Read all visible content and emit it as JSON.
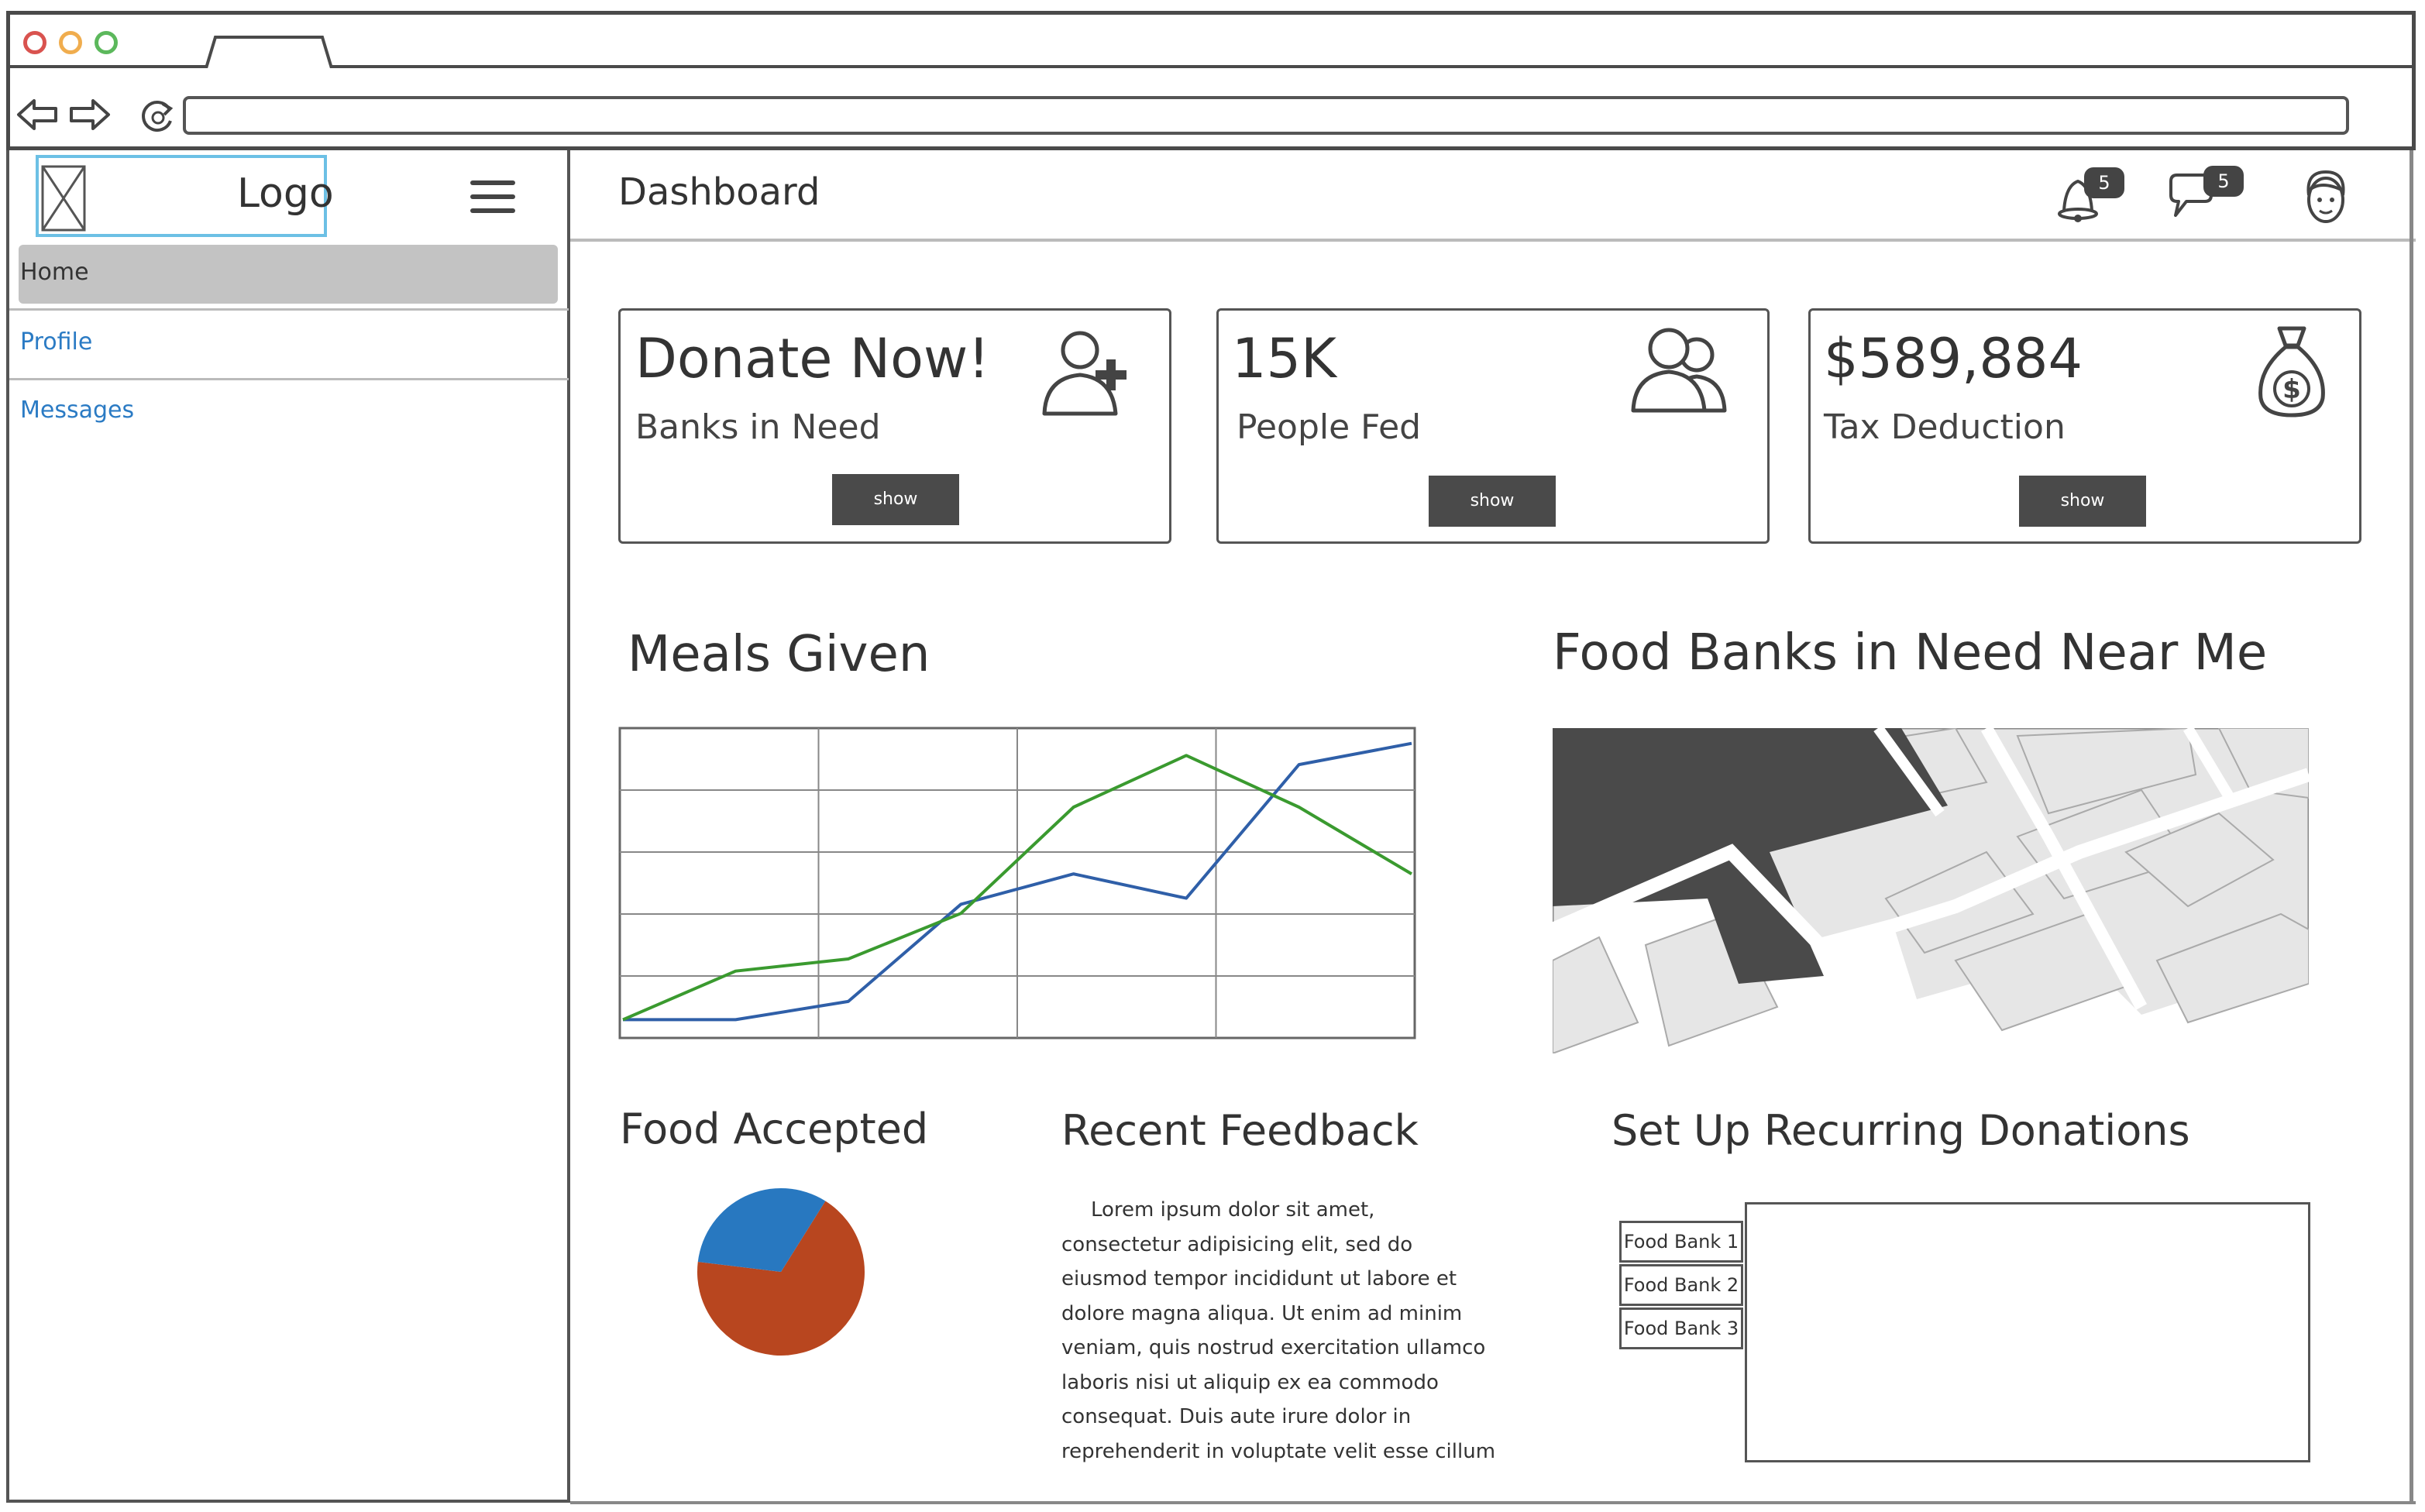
{
  "browser": {
    "window_dots": [
      "#d9534f",
      "#f0ad4e",
      "#5cb85c"
    ],
    "url": ""
  },
  "sidebar": {
    "logo": "Logo",
    "items": [
      {
        "label": "Home",
        "active": true
      },
      {
        "label": "Profile",
        "active": false
      },
      {
        "label": "Messages",
        "active": false
      }
    ]
  },
  "header": {
    "title": "Dashboard",
    "notifications_badge": "5",
    "messages_badge": "5",
    "icons": [
      "bell-icon",
      "chat-icon",
      "user-avatar-icon"
    ]
  },
  "cards": [
    {
      "value": "Donate Now!",
      "label": "Banks in Need",
      "button": "show",
      "icon": "add-user-icon"
    },
    {
      "value": "15K",
      "label": "People Fed",
      "button": "show",
      "icon": "users-icon"
    },
    {
      "value": "$589,884",
      "label": "Tax Deduction",
      "button": "show",
      "icon": "money-bag-icon"
    }
  ],
  "meals_chart": {
    "title": "Meals Given",
    "chart_data": {
      "type": "line",
      "x": [
        0,
        1,
        2,
        3,
        4,
        5,
        6,
        7
      ],
      "series": [
        {
          "values": [
            10,
            10,
            22,
            86,
            106,
            90,
            178,
            192
          ],
          "color": "#2f5fa8"
        },
        {
          "values": [
            10,
            42,
            50,
            80,
            150,
            184,
            150,
            106
          ],
          "color": "#3a9a2f"
        }
      ],
      "ylim": [
        0,
        200
      ],
      "grid": true,
      "color_bg": "#ffffff"
    }
  },
  "map": {
    "title": "Food Banks in Need Near Me"
  },
  "food_accepted": {
    "title": "Food Accepted",
    "chart_data": {
      "type": "pie",
      "values": [
        68,
        32
      ],
      "colors": [
        "#b8461f",
        "#2878c0"
      ]
    }
  },
  "feedback": {
    "title": "Recent Feedback",
    "text": "Lorem ipsum dolor sit amet, consectetur adipisicing elit, sed do eiusmod tempor incididunt ut labore et dolore magna aliqua. Ut enim ad minim veniam, quis nostrud exercitation ullamco laboris nisi ut aliquip ex ea commodo consequat. Duis aute irure dolor in reprehenderit in voluptate velit esse cillum"
  },
  "recurring": {
    "title": "Set Up Recurring Donations",
    "banks": [
      "Food Bank 1",
      "Food Bank 2",
      "Food Bank 3"
    ]
  }
}
